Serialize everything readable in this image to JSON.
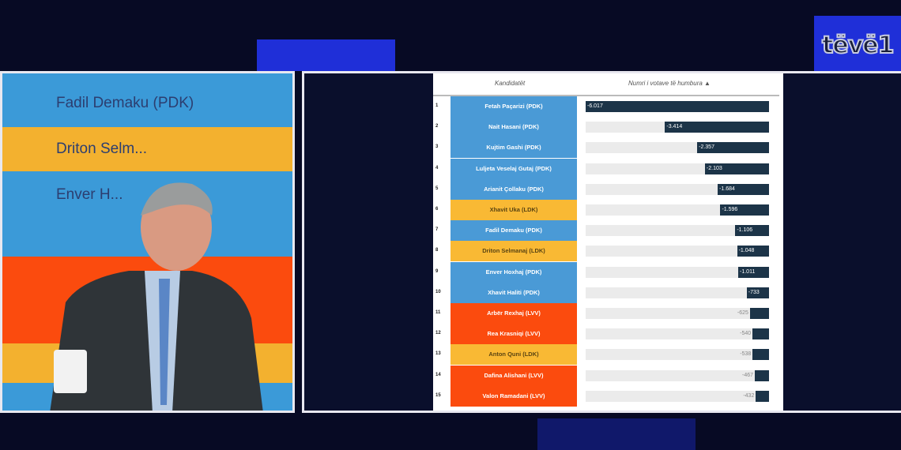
{
  "logo": "tëvë1",
  "left_screen": {
    "bands": [
      {
        "label": "Fadil Demaku (PDK)",
        "color": "#3b9ad8"
      },
      {
        "label": "Driton Selm...",
        "color": "#f3b12f"
      },
      {
        "label": "Enver H...",
        "color": "#3b9ad8"
      },
      {
        "label": "",
        "color": "#fb4b0e"
      },
      {
        "label": "",
        "color": "#f3b12f"
      }
    ]
  },
  "chart_data": {
    "type": "bar",
    "orientation": "horizontal",
    "columns": {
      "candidates": "Kandidatët",
      "values": "Numri i votave të humbura ▲"
    },
    "party_colors": {
      "PDK": "#4a9ad6",
      "LDK": "#f9b934",
      "LVV": "#fb4b0e"
    },
    "bar_color": "#1c3448",
    "rows": [
      {
        "rank": "1",
        "name": "Fetah Paçarizi (PDK)",
        "party": "PDK",
        "value": -6017,
        "label": "-6.017"
      },
      {
        "rank": "2",
        "name": "Nait Hasani (PDK)",
        "party": "PDK",
        "value": -3414,
        "label": "-3.414"
      },
      {
        "rank": "3",
        "name": "Kujtim Gashi (PDK)",
        "party": "PDK",
        "value": -2357,
        "label": "-2.357"
      },
      {
        "rank": "4",
        "name": "Luljeta Veselaj Gutaj (PDK)",
        "party": "PDK",
        "value": -2103,
        "label": "-2.103"
      },
      {
        "rank": "5",
        "name": "Arianit Çollaku (PDK)",
        "party": "PDK",
        "value": -1684,
        "label": "-1.684"
      },
      {
        "rank": "6",
        "name": "Xhavit Uka (LDK)",
        "party": "LDK",
        "value": -1596,
        "label": "-1.596"
      },
      {
        "rank": "7",
        "name": "Fadil Demaku (PDK)",
        "party": "PDK",
        "value": -1106,
        "label": "-1.106"
      },
      {
        "rank": "8",
        "name": "Driton Selmanaj (LDK)",
        "party": "LDK",
        "value": -1048,
        "label": "-1.048"
      },
      {
        "rank": "9",
        "name": "Enver Hoxhaj (PDK)",
        "party": "PDK",
        "value": -1011,
        "label": "-1.011"
      },
      {
        "rank": "10",
        "name": "Xhavit Haliti (PDK)",
        "party": "PDK",
        "value": -733,
        "label": "-733"
      },
      {
        "rank": "11",
        "name": "Arbër Rexhaj (LVV)",
        "party": "LVV",
        "value": -625,
        "label": "-625"
      },
      {
        "rank": "12",
        "name": "Rea Krasniqi (LVV)",
        "party": "LVV",
        "value": -540,
        "label": "-540"
      },
      {
        "rank": "13",
        "name": "Anton Quni (LDK)",
        "party": "LDK",
        "value": -538,
        "label": "-538"
      },
      {
        "rank": "14",
        "name": "Dafina Alishani (LVV)",
        "party": "LVV",
        "value": -467,
        "label": "-467"
      },
      {
        "rank": "15",
        "name": "Valon Ramadani (LVV)",
        "party": "LVV",
        "value": -432,
        "label": "-432"
      }
    ]
  }
}
